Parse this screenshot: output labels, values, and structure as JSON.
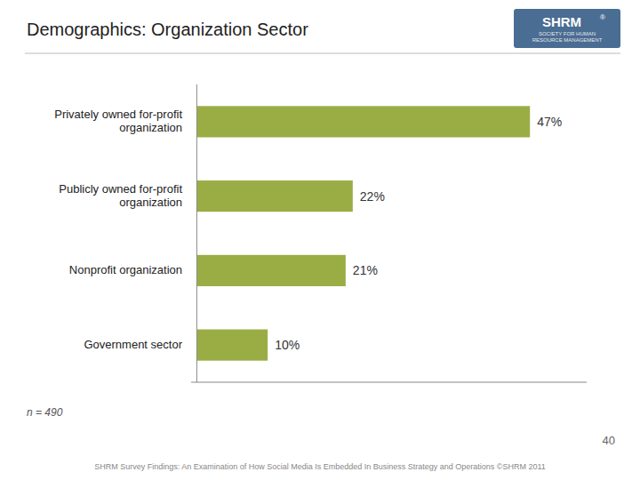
{
  "chart_data": {
    "type": "bar",
    "orientation": "horizontal",
    "title": "Demographics: Organization Sector",
    "categories": [
      "Privately owned for-profit\norganization",
      "Publicly owned for-profit\norganization",
      "Nonprofit organization",
      "Government sector"
    ],
    "values": [
      47,
      22,
      21,
      10
    ],
    "value_labels": [
      "47%",
      "22%",
      "21%",
      "10%"
    ],
    "data_labels": true,
    "color": "#9aad45",
    "xlim": [
      -0.8,
      55
    ],
    "grid": false,
    "tick_labels": "y",
    "annotations": [
      "n = 490",
      "40",
      "SHRM Survey Findings: An Examination of How Social Media Is Embedded In Business Strategy and Operations ©SHRM 2011",
      "SHRM",
      "®",
      "SOCIETY FOR HUMAN\nRESOURCE MANAGEMENT"
    ]
  }
}
